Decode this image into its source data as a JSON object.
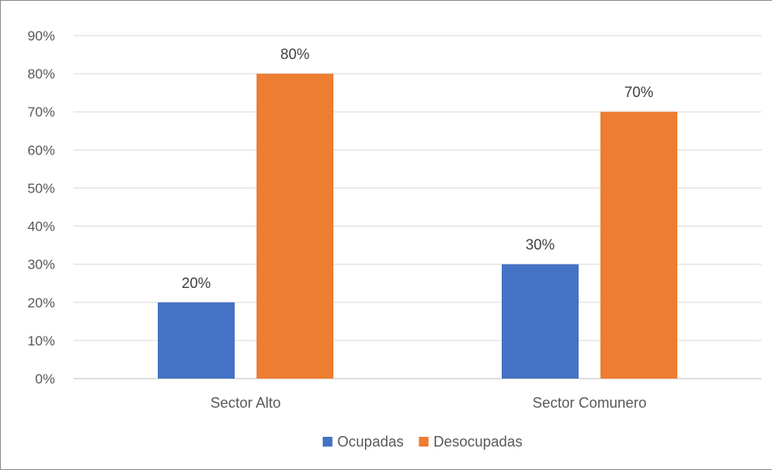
{
  "chart_data": {
    "type": "bar",
    "categories": [
      "Sector Alto",
      "Sector Comunero"
    ],
    "series": [
      {
        "name": "Ocupadas",
        "values": [
          20,
          30
        ],
        "labels": [
          "20%",
          "30%"
        ],
        "color": "#4472C4"
      },
      {
        "name": "Desocupadas",
        "values": [
          80,
          70
        ],
        "labels": [
          "80%",
          "70%"
        ],
        "color": "#ED7D31"
      }
    ],
    "ylim": [
      0,
      90
    ],
    "ytick_step": 10,
    "y_tick_labels": [
      "0%",
      "10%",
      "20%",
      "30%",
      "40%",
      "50%",
      "60%",
      "70%",
      "80%",
      "90%"
    ],
    "grid": true,
    "legend_position": "bottom",
    "gridline_color": "#d9d9d9",
    "axis_color": "#bfbfbf"
  }
}
